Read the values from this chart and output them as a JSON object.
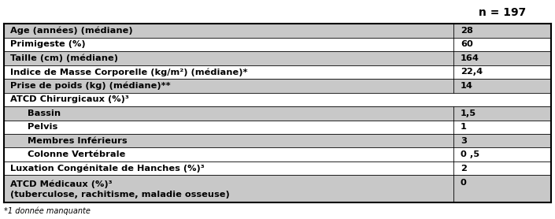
{
  "header_text": "n = 197",
  "rows": [
    {
      "label": "Age (années) (médiane)",
      "value": "28",
      "bold": true,
      "indent": 0,
      "shaded": true,
      "has_sep": true
    },
    {
      "label": "Primigeste (%)",
      "value": "60",
      "bold": true,
      "indent": 0,
      "shaded": false,
      "has_sep": true
    },
    {
      "label": "Taille (cm) (médiane)",
      "value": "164",
      "bold": true,
      "indent": 0,
      "shaded": true,
      "has_sep": true
    },
    {
      "label": "Indice de Masse Corporelle (kg/m²) (médiane)*",
      "value": "22,4",
      "bold": true,
      "indent": 0,
      "shaded": false,
      "has_sep": true
    },
    {
      "label": "Prise de poids (kg) (médiane)**",
      "value": "14",
      "bold": true,
      "indent": 0,
      "shaded": true,
      "has_sep": true
    },
    {
      "label": "ATCD Chirurgicaux (%)³",
      "value": "",
      "bold": true,
      "indent": 0,
      "shaded": false,
      "has_sep": false,
      "header_row": true
    },
    {
      "label": "  Bassin",
      "value": "1,5",
      "bold": true,
      "indent": 1,
      "shaded": true,
      "has_sep": true
    },
    {
      "label": "  Pelvis",
      "value": "1",
      "bold": true,
      "indent": 1,
      "shaded": false,
      "has_sep": true
    },
    {
      "label": "  Membres Inférieurs",
      "value": "3",
      "bold": true,
      "indent": 1,
      "shaded": true,
      "has_sep": true
    },
    {
      "label": "  Colonne Vertébrale",
      "value": "0 ,5",
      "bold": true,
      "indent": 1,
      "shaded": false,
      "has_sep": true
    },
    {
      "label": "Luxation Congénitale de Hanches (%)³",
      "value": "2",
      "bold": true,
      "indent": 0,
      "shaded": false,
      "has_sep": true
    },
    {
      "label": "ATCD Médicaux (%)³\n(tuberculose, rachitisme, maladie osseuse)",
      "value": "0",
      "bold": true,
      "indent": 0,
      "shaded": true,
      "has_sep": true,
      "tall": true
    }
  ],
  "footer": "*1 donnée manquante",
  "col_split": 0.822,
  "shaded_color": "#c8c8c8",
  "white_color": "#ffffff",
  "font_size": 8.2,
  "header_font_size": 10.0,
  "asterisks": "***"
}
